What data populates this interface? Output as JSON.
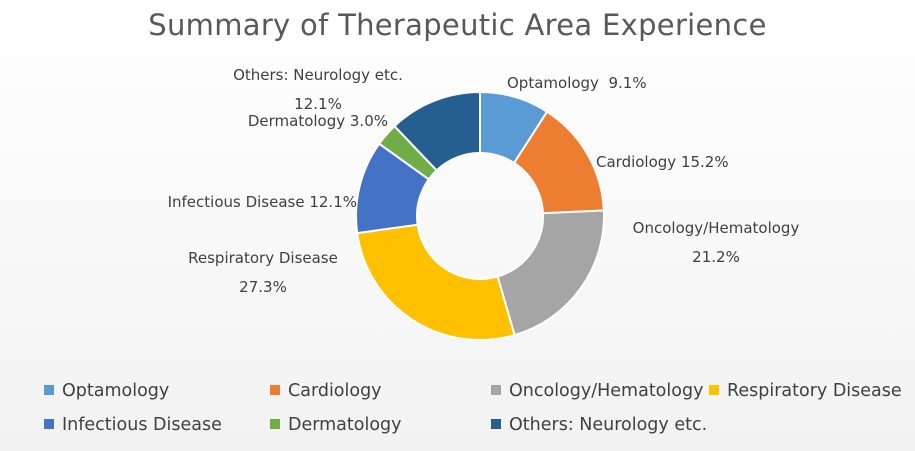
{
  "chart_data": {
    "type": "pie",
    "title": "Summary of Therapeutic Area Experience",
    "donut": true,
    "legend_position": "bottom",
    "slices": [
      {
        "name": "Optamology",
        "value": 9.1,
        "value_label": "9.1%",
        "color": "#5b9bd5",
        "label_lines": [
          "Optamology  9.1%"
        ]
      },
      {
        "name": "Cardiology",
        "value": 15.2,
        "value_label": "15.2%",
        "color": "#ed7d31",
        "label_lines": [
          "Cardiology 15.2%"
        ]
      },
      {
        "name": "Oncology/Hematology",
        "value": 21.2,
        "value_label": "21.2%",
        "color": "#a5a5a5",
        "label_lines": [
          "Oncology/Hematology",
          "21.2%"
        ]
      },
      {
        "name": "Respiratory Disease",
        "value": 27.3,
        "value_label": "27.3%",
        "color": "#ffc000",
        "label_lines": [
          "Respiratory Disease",
          "27.3%"
        ]
      },
      {
        "name": "Infectious Disease",
        "value": 12.1,
        "value_label": "12.1%",
        "color": "#4472c4",
        "label_lines": [
          "Infectious Disease 12.1%"
        ]
      },
      {
        "name": "Dermatology",
        "value": 3.0,
        "value_label": "3.0%",
        "color": "#70ad47",
        "label_lines": [
          "Dermatology 3.0%"
        ]
      },
      {
        "name": "Others: Neurology etc.",
        "value": 12.1,
        "value_label": "12.1%",
        "color": "#255e91",
        "label_lines": [
          "Others: Neurology etc.",
          "12.1%"
        ]
      }
    ]
  }
}
